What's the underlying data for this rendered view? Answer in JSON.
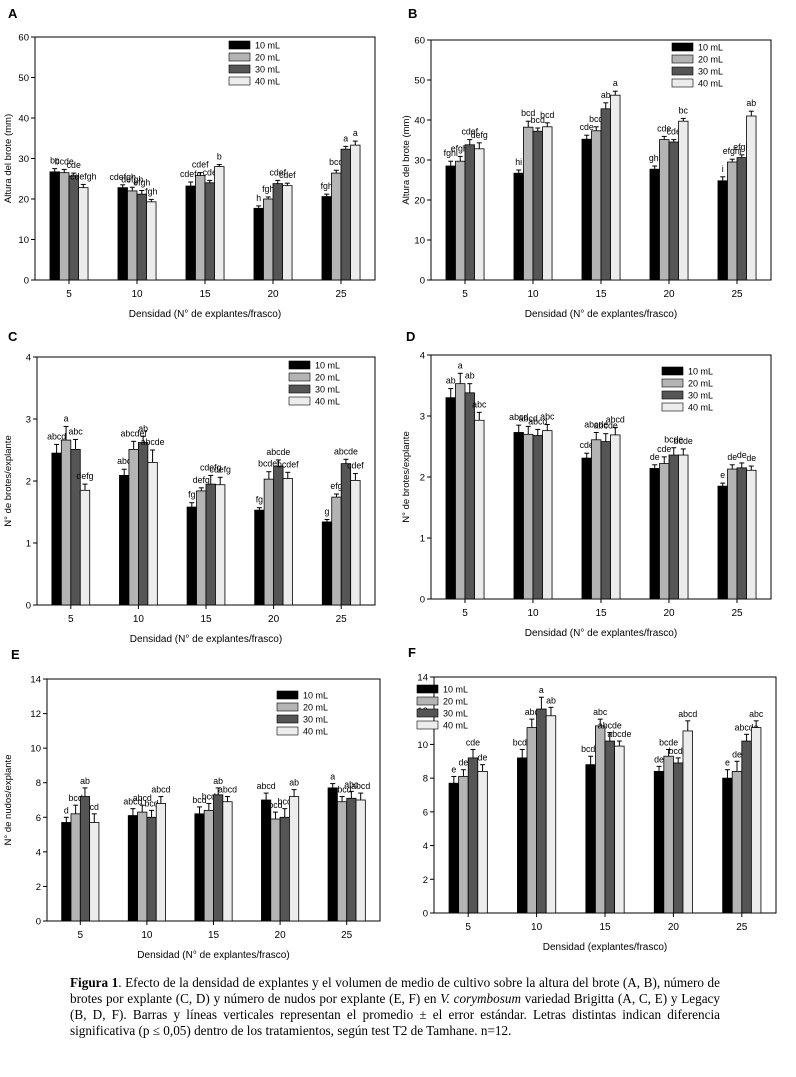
{
  "figure": {
    "caption_label": "Figura 1",
    "caption_text_1": ". Efecto de la densidad de explantes y el volumen de medio de cultivo sobre la altura del brote (A, B), número de brotes por explante (C, D) y número de nudos por explante (E, F) en ",
    "caption_species": "V. corymbosum",
    "caption_text_2": " variedad Brigitta (A, C, E) y Legacy (B, D, F). Barras y líneas verticales representan el promedio ± el error estándar. Letras distintas indican diferencia significativa (p ≤ 0,05) dentro de los tratamientos, según test T2 de Tamhane. n=12."
  },
  "colors": {
    "10 mL": "#000000",
    "20 mL": "#b4b4b4",
    "30 mL": "#555555",
    "40 mL": "#ececec"
  },
  "chart_data": [
    {
      "panel": "A",
      "type": "bar",
      "xlabel": "Densidad (N° de explantes/frasco)",
      "ylabel": "Altura del brote (mm)",
      "categories": [
        "5",
        "10",
        "15",
        "20",
        "25"
      ],
      "ylim": [
        0,
        60
      ],
      "yticks": [
        0,
        10,
        20,
        30,
        40,
        50,
        60
      ],
      "legend": [
        "10 mL",
        "20 mL",
        "30 mL",
        "40 mL"
      ],
      "legend_position": "top-right",
      "series": [
        {
          "name": "10 mL",
          "values": [
            26.7,
            22.8,
            23.2,
            17.7,
            20.6
          ],
          "errors": [
            0.8,
            0.7,
            1.0,
            0.6,
            0.6
          ],
          "letters": [
            "bc",
            "cdefgh",
            "cdefg",
            "h",
            "fgh"
          ]
        },
        {
          "name": "20 mL",
          "values": [
            26.5,
            22.0,
            25.8,
            20.0,
            26.4
          ],
          "errors": [
            0.8,
            0.9,
            0.7,
            0.5,
            0.7
          ],
          "letters": [
            "bcde",
            "defgh",
            "cdef",
            "fgh",
            "bcd"
          ]
        },
        {
          "name": "30 mL",
          "values": [
            25.7,
            21.2,
            24.0,
            23.8,
            32.3
          ],
          "errors": [
            0.7,
            0.9,
            0.6,
            0.8,
            0.7
          ],
          "letters": [
            "cde",
            "efgh",
            "cde",
            "cdef",
            "a"
          ]
        },
        {
          "name": "40 mL",
          "values": [
            22.8,
            19.3,
            28.0,
            23.3,
            33.3
          ],
          "errors": [
            0.8,
            0.6,
            0.5,
            0.6,
            1.0
          ],
          "letters": [
            "cdefgh",
            "fgh",
            "b",
            "cdef",
            "a"
          ]
        }
      ]
    },
    {
      "panel": "B",
      "type": "bar",
      "xlabel": "Densidad (N° de explantes/frasco)",
      "ylabel": "Altura del brote (mm)",
      "categories": [
        "5",
        "10",
        "15",
        "20",
        "25"
      ],
      "ylim": [
        0,
        60
      ],
      "yticks": [
        0,
        10,
        20,
        30,
        40,
        50,
        60
      ],
      "legend": [
        "10 mL",
        "20 mL",
        "30 mL",
        "40 mL"
      ],
      "legend_position": "top-right",
      "series": [
        {
          "name": "10 mL",
          "values": [
            28.5,
            26.7,
            35.2,
            27.7,
            24.8
          ],
          "errors": [
            1.2,
            0.8,
            1.0,
            0.8,
            1.0
          ],
          "letters": [
            "fghi",
            "hi",
            "cde",
            "ghi",
            "i"
          ]
        },
        {
          "name": "20 mL",
          "values": [
            29.7,
            38.2,
            37.3,
            35.1,
            29.5
          ],
          "errors": [
            1.2,
            1.5,
            1.0,
            0.8,
            0.7
          ],
          "letters": [
            "efghi",
            "bcd",
            "bcd",
            "cde",
            "efghi"
          ]
        },
        {
          "name": "30 mL",
          "values": [
            33.8,
            37.2,
            42.8,
            34.5,
            30.6
          ],
          "errors": [
            1.3,
            0.8,
            1.5,
            0.6,
            0.7
          ],
          "letters": [
            "cdef",
            "bcd",
            "ab",
            "cde",
            "efgh"
          ]
        },
        {
          "name": "40 mL",
          "values": [
            32.8,
            38.3,
            46.2,
            39.7,
            41.0
          ],
          "errors": [
            1.5,
            1.0,
            1.0,
            0.7,
            1.2
          ],
          "letters": [
            "defg",
            "bcd",
            "a",
            "bc",
            "ab"
          ]
        }
      ]
    },
    {
      "panel": "C",
      "type": "bar",
      "xlabel": "Densidad (N° de explantes/frasco)",
      "ylabel": "N° de brotes/explante",
      "categories": [
        "5",
        "10",
        "15",
        "20",
        "25"
      ],
      "ylim": [
        0,
        4
      ],
      "yticks": [
        0,
        1,
        2,
        3,
        4
      ],
      "legend": [
        "10 mL",
        "20 mL",
        "30 mL",
        "40 mL"
      ],
      "legend_position": "top-right",
      "series": [
        {
          "name": "10 mL",
          "values": [
            2.45,
            2.09,
            1.58,
            1.53,
            1.34
          ],
          "errors": [
            0.14,
            0.1,
            0.07,
            0.04,
            0.04
          ],
          "letters": [
            "abcd",
            "abc",
            "fg",
            "fg",
            "g"
          ]
        },
        {
          "name": "20 mL",
          "values": [
            2.66,
            2.51,
            1.84,
            2.03,
            1.74
          ],
          "errors": [
            0.22,
            0.13,
            0.05,
            0.12,
            0.05
          ],
          "letters": [
            "a",
            "abcdef",
            "defg",
            "bcdef",
            "efg"
          ]
        },
        {
          "name": "30 mL",
          "values": [
            2.51,
            2.62,
            1.95,
            2.24,
            2.28
          ],
          "errors": [
            0.16,
            0.1,
            0.14,
            0.1,
            0.07
          ],
          "letters": [
            "abc",
            "ab",
            "cdefg",
            "abcde",
            "abcde"
          ]
        },
        {
          "name": "40 mL",
          "values": [
            1.85,
            2.3,
            1.94,
            2.04,
            2.01
          ],
          "errors": [
            0.1,
            0.2,
            0.12,
            0.1,
            0.11
          ],
          "letters": [
            "defg",
            "abcde",
            "cdefg",
            "bcdef",
            "cdef"
          ]
        }
      ]
    },
    {
      "panel": "D",
      "type": "bar",
      "xlabel": "Densidad (N° de explantes/frasco)",
      "ylabel": "N° de brotes/explante",
      "categories": [
        "5",
        "10",
        "15",
        "20",
        "25"
      ],
      "ylim": [
        0,
        4
      ],
      "yticks": [
        0,
        1,
        2,
        3,
        4
      ],
      "legend": [
        "10 mL",
        "20 mL",
        "30 mL",
        "40 mL"
      ],
      "legend_position": "top-right",
      "series": [
        {
          "name": "10 mL",
          "values": [
            3.3,
            2.73,
            2.31,
            2.14,
            1.85
          ],
          "errors": [
            0.15,
            0.12,
            0.08,
            0.06,
            0.05
          ],
          "letters": [
            "ab",
            "abcd",
            "cde",
            "de",
            "e"
          ]
        },
        {
          "name": "20 mL",
          "values": [
            3.53,
            2.7,
            2.61,
            2.22,
            2.13
          ],
          "errors": [
            0.17,
            0.13,
            0.12,
            0.11,
            0.07
          ],
          "letters": [
            "a",
            "abcd",
            "abcde",
            "cde",
            "de"
          ]
        },
        {
          "name": "30 mL",
          "values": [
            3.38,
            2.68,
            2.58,
            2.36,
            2.15
          ],
          "errors": [
            0.15,
            0.1,
            0.13,
            0.12,
            0.08
          ],
          "letters": [
            "ab",
            "abcd",
            "abcde",
            "bcde",
            "de"
          ]
        },
        {
          "name": "40 mL",
          "values": [
            2.93,
            2.76,
            2.69,
            2.36,
            2.11
          ],
          "errors": [
            0.13,
            0.1,
            0.12,
            0.1,
            0.07
          ],
          "letters": [
            "abc",
            "abc",
            "abcd",
            "bcde",
            "de"
          ]
        }
      ]
    },
    {
      "panel": "E",
      "type": "bar",
      "xlabel": "Densidad (N° de explantes/frasco)",
      "ylabel": "N° de nudos/explante",
      "categories": [
        "5",
        "10",
        "15",
        "20",
        "25"
      ],
      "ylim": [
        0,
        14
      ],
      "yticks": [
        0,
        2,
        4,
        6,
        8,
        10,
        12,
        14
      ],
      "legend": [
        "10 mL",
        "20 mL",
        "30 mL",
        "40 mL"
      ],
      "legend_position": "top-right",
      "series": [
        {
          "name": "10 mL",
          "values": [
            5.7,
            6.1,
            6.2,
            7.0,
            7.7
          ],
          "errors": [
            0.3,
            0.4,
            0.4,
            0.4,
            0.25
          ],
          "letters": [
            "d",
            "abcd",
            "bcd",
            "abcd",
            "a"
          ]
        },
        {
          "name": "20 mL",
          "values": [
            6.2,
            6.3,
            6.4,
            5.9,
            6.9
          ],
          "errors": [
            0.5,
            0.4,
            0.4,
            0.4,
            0.3
          ],
          "letters": [
            "bcd",
            "abcd",
            "bcd",
            "bcd",
            "abcd"
          ]
        },
        {
          "name": "30 mL",
          "values": [
            7.2,
            6.0,
            7.3,
            6.0,
            7.1
          ],
          "errors": [
            0.5,
            0.4,
            0.4,
            0.5,
            0.4
          ],
          "letters": [
            "ab",
            "bcd",
            "ab",
            "bcd",
            "abc"
          ]
        },
        {
          "name": "40 mL",
          "values": [
            5.7,
            6.8,
            6.9,
            7.2,
            7.0
          ],
          "errors": [
            0.5,
            0.4,
            0.3,
            0.4,
            0.4
          ],
          "letters": [
            "cd",
            "abcd",
            "abcd",
            "ab",
            "abcd"
          ]
        }
      ]
    },
    {
      "panel": "F",
      "type": "bar",
      "xlabel": "Densidad (explantes/frasco)",
      "ylabel": "",
      "categories": [
        "5",
        "10",
        "15",
        "20",
        "25"
      ],
      "ylim": [
        0,
        14
      ],
      "yticks": [
        0,
        2,
        4,
        6,
        8,
        10,
        12,
        14
      ],
      "legend": [
        "10 mL",
        "20 mL",
        "30 mL",
        "40 mL"
      ],
      "legend_position": "top-left",
      "series": [
        {
          "name": "10 mL",
          "values": [
            7.7,
            9.2,
            8.8,
            8.4,
            8.0
          ],
          "errors": [
            0.4,
            0.5,
            0.5,
            0.3,
            0.5
          ],
          "letters": [
            "e",
            "bcde",
            "bcde",
            "de",
            "e"
          ]
        },
        {
          "name": "20 mL",
          "values": [
            8.1,
            11.0,
            11.1,
            9.3,
            8.4
          ],
          "errors": [
            0.4,
            0.5,
            0.4,
            0.4,
            0.6
          ],
          "letters": [
            "de",
            "abc",
            "abc",
            "bcde",
            "de"
          ]
        },
        {
          "name": "30 mL",
          "values": [
            9.2,
            12.1,
            10.2,
            8.9,
            10.2
          ],
          "errors": [
            0.5,
            0.7,
            0.5,
            0.3,
            0.4
          ],
          "letters": [
            "cde",
            "a",
            "abcde",
            "bcde",
            "abcde"
          ]
        },
        {
          "name": "40 mL",
          "values": [
            8.4,
            11.7,
            9.9,
            10.8,
            11.0
          ],
          "errors": [
            0.4,
            0.5,
            0.3,
            0.6,
            0.4
          ],
          "letters": [
            "de",
            "ab",
            "abcde",
            "abcd",
            "abc"
          ]
        }
      ]
    }
  ]
}
